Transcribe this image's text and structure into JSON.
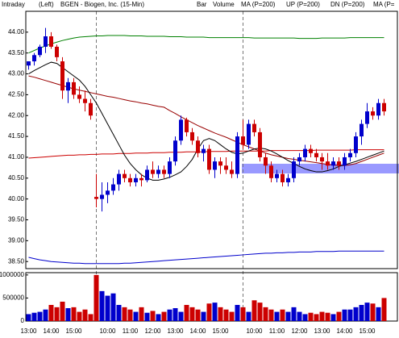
{
  "header": {
    "mode": "Intraday",
    "side": "(Left)",
    "title": "BGEN - Biogen, Inc. (15-Min)"
  },
  "chart_data": [
    {
      "type": "candlestick",
      "name": "Bar",
      "up_color": "#0000cc",
      "down_color": "#cc0000",
      "categories": [
        "13:00",
        null,
        null,
        null,
        "14:00",
        null,
        null,
        null,
        "15:00",
        null,
        null,
        null,
        null,
        null,
        "10:00",
        null,
        null,
        null,
        "11:00",
        null,
        null,
        null,
        "12:00",
        null,
        null,
        null,
        "13:00",
        null,
        null,
        null,
        "14:00",
        null,
        null,
        null,
        "15:00",
        null,
        null,
        null,
        null,
        null,
        "10:00",
        null,
        null,
        null,
        "11:00",
        null,
        null,
        null,
        "12:00",
        null,
        null,
        null,
        "13:00",
        null,
        null,
        null,
        "14:00",
        null,
        null,
        null,
        "15:00",
        null,
        null,
        null
      ],
      "open": [
        43.2,
        43.3,
        43.45,
        43.65,
        43.9,
        43.65,
        43.3,
        42.6,
        42.8,
        42.5,
        42.4,
        42.3,
        40.05,
        40.0,
        40.1,
        40.2,
        40.35,
        40.6,
        40.5,
        40.4,
        40.5,
        40.45,
        40.7,
        40.6,
        40.7,
        40.6,
        40.9,
        41.4,
        41.9,
        41.6,
        41.4,
        41.1,
        41.2,
        40.7,
        40.9,
        40.8,
        40.7,
        40.6,
        41.5,
        41.3,
        41.8,
        41.6,
        41.0,
        40.8,
        40.5,
        40.6,
        40.4,
        40.5,
        40.9,
        41.0,
        41.2,
        41.1,
        41.0,
        40.9,
        40.8,
        40.9,
        40.8,
        41.0,
        41.1,
        41.5,
        41.8,
        42.1,
        42.0,
        42.3
      ],
      "high": [
        43.3,
        43.5,
        43.7,
        44.1,
        44.0,
        43.7,
        43.4,
        42.9,
        42.9,
        42.7,
        42.6,
        42.4,
        40.6,
        40.4,
        40.4,
        40.5,
        40.7,
        40.7,
        40.6,
        40.6,
        40.6,
        40.8,
        40.9,
        40.8,
        40.8,
        41.0,
        41.5,
        42.0,
        41.95,
        41.7,
        41.5,
        41.3,
        41.3,
        41.0,
        41.0,
        41.0,
        40.9,
        41.6,
        41.9,
        41.9,
        41.9,
        41.7,
        41.1,
        40.9,
        40.7,
        40.7,
        40.6,
        41.0,
        41.1,
        41.3,
        41.3,
        41.2,
        41.1,
        41.1,
        41.0,
        41.0,
        41.1,
        41.2,
        41.6,
        41.9,
        42.3,
        42.2,
        42.4,
        42.4
      ],
      "low": [
        43.1,
        43.2,
        43.4,
        43.5,
        43.6,
        43.3,
        42.4,
        42.3,
        42.4,
        42.3,
        42.1,
        41.9,
        39.8,
        39.7,
        39.9,
        40.1,
        40.2,
        40.4,
        40.3,
        40.3,
        40.3,
        40.4,
        40.5,
        40.5,
        40.5,
        40.5,
        40.8,
        41.3,
        41.5,
        41.3,
        41.0,
        40.9,
        40.6,
        40.5,
        40.6,
        40.6,
        40.5,
        40.5,
        41.2,
        41.2,
        41.5,
        40.9,
        40.6,
        40.4,
        40.4,
        40.3,
        40.3,
        40.4,
        40.8,
        40.9,
        41.0,
        40.9,
        40.7,
        40.7,
        40.7,
        40.7,
        40.7,
        40.9,
        41.0,
        41.3,
        41.7,
        41.9,
        41.9,
        42.0
      ],
      "close": [
        43.3,
        43.45,
        43.65,
        43.9,
        43.65,
        43.4,
        42.6,
        42.8,
        42.5,
        42.4,
        42.3,
        42.0,
        40.0,
        40.1,
        40.2,
        40.35,
        40.6,
        40.5,
        40.4,
        40.5,
        40.45,
        40.7,
        40.6,
        40.7,
        40.6,
        40.9,
        41.4,
        41.9,
        41.6,
        41.4,
        41.1,
        41.2,
        40.7,
        40.9,
        40.8,
        40.7,
        40.6,
        41.5,
        41.3,
        41.8,
        41.6,
        41.0,
        40.8,
        40.5,
        40.6,
        40.4,
        40.5,
        40.9,
        41.0,
        41.2,
        41.1,
        41.0,
        40.9,
        40.8,
        40.9,
        40.8,
        41.0,
        41.1,
        41.5,
        41.8,
        42.1,
        42.0,
        42.3,
        42.1
      ],
      "series": [
        {
          "name": "MA (P=200)",
          "color": "#cc0000",
          "values": [
            40.98,
            40.99,
            41.0,
            41.01,
            41.02,
            41.03,
            41.04,
            41.05,
            41.05,
            41.06,
            41.06,
            41.07,
            41.07,
            41.08,
            41.08,
            41.08,
            41.09,
            41.09,
            41.09,
            41.1,
            41.1,
            41.1,
            41.11,
            41.11,
            41.11,
            41.12,
            41.12,
            41.12,
            41.13,
            41.13,
            41.13,
            41.13,
            41.14,
            41.14,
            41.14,
            41.14,
            41.15,
            41.15,
            41.15,
            41.15,
            41.15,
            41.15,
            41.15,
            41.16,
            41.16,
            41.16,
            41.16,
            41.16,
            41.16,
            41.16,
            41.16,
            41.17,
            41.17,
            41.17,
            41.17,
            41.17,
            41.17,
            41.17,
            41.18,
            41.18,
            41.18,
            41.18,
            41.18,
            41.18
          ]
        },
        {
          "name": "UP (P=200)",
          "color": "#008000",
          "values": [
            43.5,
            43.56,
            43.62,
            43.67,
            43.72,
            43.76,
            43.8,
            43.83,
            43.86,
            43.88,
            43.89,
            43.9,
            43.91,
            43.91,
            43.92,
            43.92,
            43.92,
            43.92,
            43.91,
            43.91,
            43.91,
            43.9,
            43.9,
            43.9,
            43.9,
            43.89,
            43.89,
            43.89,
            43.88,
            43.88,
            43.88,
            43.88,
            43.87,
            43.87,
            43.87,
            43.87,
            43.87,
            43.87,
            43.87,
            43.87,
            43.86,
            43.86,
            43.86,
            43.86,
            43.86,
            43.86,
            43.86,
            43.86,
            43.85,
            43.85,
            43.85,
            43.85,
            43.86,
            43.86,
            43.86,
            43.86,
            43.86,
            43.87,
            43.87,
            43.87,
            43.87,
            43.87,
            43.87,
            43.87
          ]
        },
        {
          "name": "DN (P=200)",
          "color": "#0000cc",
          "values": [
            38.6,
            38.57,
            38.54,
            38.52,
            38.5,
            38.49,
            38.48,
            38.47,
            38.46,
            38.46,
            38.45,
            38.45,
            38.45,
            38.45,
            38.45,
            38.45,
            38.45,
            38.46,
            38.46,
            38.47,
            38.48,
            38.49,
            38.5,
            38.51,
            38.52,
            38.53,
            38.54,
            38.55,
            38.56,
            38.57,
            38.58,
            38.59,
            38.6,
            38.61,
            38.62,
            38.63,
            38.64,
            38.65,
            38.66,
            38.67,
            38.68,
            38.69,
            38.7,
            38.7,
            38.71,
            38.71,
            38.72,
            38.72,
            38.73,
            38.73,
            38.73,
            38.74,
            38.74,
            38.74,
            38.74,
            38.75,
            38.75,
            38.75,
            38.75,
            38.75,
            38.75,
            38.75,
            38.75,
            38.75
          ]
        },
        {
          "name": "MA (P=",
          "color": "#990000",
          "values": [
            42.95,
            42.92,
            42.88,
            42.84,
            42.8,
            42.76,
            42.72,
            42.68,
            42.64,
            42.61,
            42.58,
            42.55,
            42.52,
            42.49,
            42.46,
            42.44,
            42.41,
            42.38,
            42.35,
            42.33,
            42.3,
            42.28,
            42.25,
            42.22,
            42.2,
            42.12,
            42.05,
            41.97,
            41.9,
            41.83,
            41.76,
            41.7,
            41.64,
            41.58,
            41.53,
            41.48,
            41.42,
            41.36,
            41.3,
            41.25,
            41.2,
            41.15,
            41.1,
            41.06,
            41.03,
            41.0,
            40.97,
            40.95,
            40.93,
            40.91,
            40.89,
            40.87,
            40.85,
            40.83,
            40.81,
            40.8,
            40.8,
            40.82,
            40.85,
            40.9,
            40.95,
            41.0,
            41.05,
            41.1
          ]
        },
        {
          "color": "#000000",
          "values": [
            43.0,
            43.08,
            43.15,
            43.22,
            43.28,
            43.25,
            43.15,
            43.05,
            42.95,
            42.85,
            42.7,
            42.5,
            42.3,
            42.05,
            41.8,
            41.55,
            41.3,
            41.05,
            40.85,
            40.7,
            40.58,
            40.5,
            40.45,
            40.45,
            40.48,
            40.52,
            40.58,
            40.65,
            40.78,
            40.95,
            41.2,
            41.4,
            41.45,
            41.4,
            41.3,
            41.2,
            41.12,
            41.08,
            41.1,
            41.15,
            41.2,
            41.22,
            41.2,
            41.15,
            41.08,
            41.0,
            40.92,
            40.85,
            40.78,
            40.72,
            40.68,
            40.65,
            40.65,
            40.68,
            40.72,
            40.78,
            40.82,
            40.86,
            40.9,
            40.95,
            41.0,
            41.05,
            41.1,
            41.15
          ]
        }
      ],
      "ylim": [
        38.33,
        44.5
      ],
      "yticks": [
        {
          "value": 38.5,
          "label": "38.50"
        },
        {
          "value": 39,
          "label": "39.00"
        },
        {
          "value": 39.5,
          "label": "39.50"
        },
        {
          "value": 40,
          "label": "40.00"
        },
        {
          "value": 40.5,
          "label": "40.50"
        },
        {
          "value": 41,
          "label": "41.00"
        },
        {
          "value": 41.5,
          "label": "41.50"
        },
        {
          "value": 42,
          "label": "42.00"
        },
        {
          "value": 42.5,
          "label": "42.50"
        },
        {
          "value": 43,
          "label": "43.00"
        },
        {
          "value": 43.5,
          "label": "43.50"
        },
        {
          "value": 44,
          "label": "44.00"
        }
      ]
    },
    {
      "type": "bar",
      "series": [
        {
          "name": "Volume",
          "color": "#008000",
          "values": [
            150000,
            180000,
            200000,
            250000,
            350000,
            300000,
            420000,
            280000,
            300000,
            200000,
            250000,
            150000,
            1000000,
            650000,
            550000,
            600000,
            350000,
            300000,
            250000,
            200000,
            300000,
            180000,
            220000,
            150000,
            200000,
            250000,
            280000,
            200000,
            350000,
            300000,
            250000,
            200000,
            380000,
            400000,
            300000,
            250000,
            200000,
            350000,
            300000,
            200000,
            450000,
            400000,
            300000,
            250000,
            200000,
            250000,
            200000,
            300000,
            200000,
            150000,
            180000,
            150000,
            200000,
            180000,
            150000,
            200000,
            250000,
            250000,
            300000,
            350000,
            400000,
            380000,
            300000,
            500000
          ]
        }
      ],
      "ylim": [
        0,
        1050000
      ],
      "yticks": [
        0,
        500000,
        1000000
      ]
    }
  ]
}
